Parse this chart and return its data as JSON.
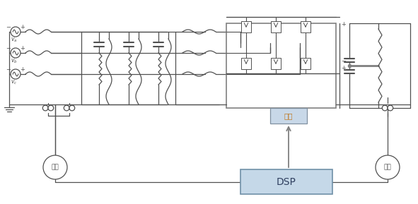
{
  "bg_color": "#ffffff",
  "lc": "#505050",
  "gc": "#808080",
  "dsp_fc": "#c5d8e8",
  "dsp_ec": "#7090a8",
  "drive_fc": "#c8d8e8",
  "drive_ec": "#8090a0",
  "orange": "#c07820",
  "figsize": [
    5.91,
    2.89
  ],
  "dpi": 100,
  "sample_label": "采样",
  "dsp_label": "DSP",
  "drive_label": "驱动",
  "va_label": "v_a",
  "vb_label": "v_b",
  "vc_label": "v_c"
}
